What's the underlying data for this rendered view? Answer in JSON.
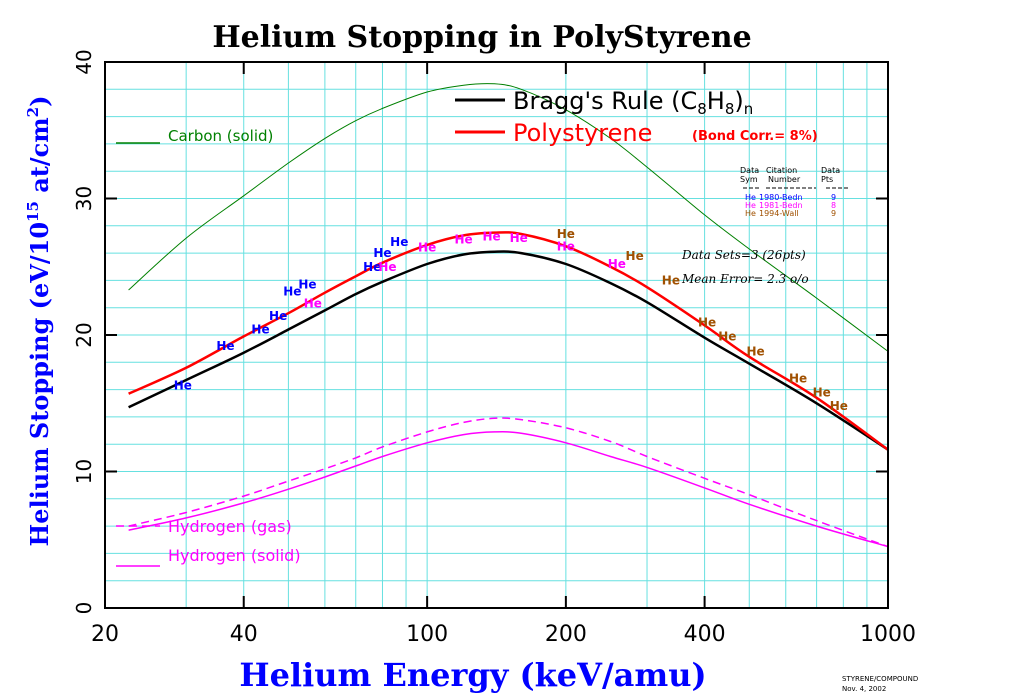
{
  "chart_data": {
    "type": "line",
    "title": "Helium Stopping in PolyStyrene",
    "xlabel": "Helium Energy (keV/amu)",
    "ylabel": {
      "prefix": "Helium Stopping (eV/10",
      "sup1": "15",
      "mid": " at/cm",
      "sup2": "2",
      "suffix": ")"
    },
    "x_scale": "log",
    "xlim": [
      20,
      1000
    ],
    "ylim": [
      0,
      40
    ],
    "x_ticks": [
      20,
      40,
      100,
      200,
      400,
      1000
    ],
    "x_tick_labels": [
      "20",
      "40",
      "100",
      "200",
      "400",
      "1000"
    ],
    "y_ticks": [
      0,
      10,
      20,
      30,
      40
    ],
    "y_tick_labels": [
      "0",
      "10",
      "20",
      "30",
      "40"
    ],
    "grid": true,
    "series": [
      {
        "name": "Carbon (solid)",
        "color": "#008000",
        "style": "solid",
        "x": [
          22.5,
          30,
          40,
          50,
          60,
          70,
          80,
          100,
          120,
          140,
          160,
          200,
          250,
          300,
          400,
          500,
          700,
          1000
        ],
        "y": [
          23.3,
          27.1,
          30.2,
          32.6,
          34.4,
          35.7,
          36.6,
          37.8,
          38.3,
          38.4,
          38.0,
          36.5,
          34.4,
          32.3,
          28.8,
          26.3,
          22.7,
          18.8
        ]
      },
      {
        "name": "Bragg's Rule (C8H8)n",
        "label_parts": [
          "Bragg's Rule (C",
          "8",
          "H",
          "8",
          ")",
          "n"
        ],
        "color": "#000000",
        "style": "solid",
        "x": [
          22.5,
          30,
          40,
          50,
          60,
          70,
          80,
          100,
          120,
          140,
          160,
          200,
          250,
          300,
          400,
          500,
          700,
          1000
        ],
        "y": [
          14.7,
          16.7,
          18.7,
          20.4,
          21.8,
          23.0,
          23.9,
          25.2,
          25.9,
          26.1,
          26.0,
          25.2,
          23.8,
          22.4,
          19.8,
          17.9,
          15.0,
          11.6
        ]
      },
      {
        "name": "Polystyrene",
        "color": "#ff0000",
        "style": "solid",
        "x": [
          22.5,
          30,
          40,
          50,
          60,
          70,
          80,
          100,
          120,
          140,
          160,
          200,
          250,
          300,
          400,
          500,
          700,
          1000
        ],
        "y": [
          15.7,
          17.6,
          19.9,
          21.6,
          23.1,
          24.3,
          25.3,
          26.6,
          27.3,
          27.5,
          27.4,
          26.5,
          25.0,
          23.5,
          20.7,
          18.4,
          15.4,
          11.6
        ]
      },
      {
        "name": "Hydrogen (gas)",
        "color": "#ff00ff",
        "style": "dashed",
        "x": [
          22.5,
          30,
          40,
          50,
          60,
          70,
          80,
          100,
          120,
          140,
          160,
          200,
          250,
          300,
          400,
          500,
          700,
          1000
        ],
        "y": [
          6.0,
          7.0,
          8.2,
          9.3,
          10.2,
          11.0,
          11.8,
          12.9,
          13.6,
          13.9,
          13.8,
          13.2,
          12.2,
          11.1,
          9.5,
          8.3,
          6.4,
          4.5
        ]
      },
      {
        "name": "Hydrogen (solid)",
        "color": "#ff00ff",
        "style": "solid",
        "x": [
          22.5,
          30,
          40,
          50,
          60,
          70,
          80,
          100,
          120,
          140,
          160,
          200,
          250,
          300,
          400,
          500,
          700,
          1000
        ],
        "y": [
          5.7,
          6.6,
          7.7,
          8.7,
          9.6,
          10.4,
          11.1,
          12.1,
          12.7,
          12.9,
          12.8,
          12.1,
          11.1,
          10.3,
          8.8,
          7.6,
          6.0,
          4.5
        ]
      }
    ],
    "data_points": [
      {
        "x": 29.5,
        "y": 16.3,
        "set": 0
      },
      {
        "x": 36.5,
        "y": 19.2,
        "set": 0
      },
      {
        "x": 43.5,
        "y": 20.4,
        "set": 0
      },
      {
        "x": 47.5,
        "y": 21.4,
        "set": 0
      },
      {
        "x": 51,
        "y": 23.2,
        "set": 0
      },
      {
        "x": 55,
        "y": 23.7,
        "set": 0
      },
      {
        "x": 76,
        "y": 25.0,
        "set": 0
      },
      {
        "x": 80,
        "y": 26.0,
        "set": 0
      },
      {
        "x": 87,
        "y": 26.8,
        "set": 0
      },
      {
        "x": 56.5,
        "y": 22.3,
        "set": 1
      },
      {
        "x": 82,
        "y": 25.0,
        "set": 1
      },
      {
        "x": 100,
        "y": 26.4,
        "set": 1
      },
      {
        "x": 120,
        "y": 27.0,
        "set": 1
      },
      {
        "x": 138,
        "y": 27.2,
        "set": 1
      },
      {
        "x": 158,
        "y": 27.1,
        "set": 1
      },
      {
        "x": 200,
        "y": 26.5,
        "set": 1
      },
      {
        "x": 258,
        "y": 25.2,
        "set": 1
      },
      {
        "x": 200,
        "y": 27.4,
        "set": 2
      },
      {
        "x": 282,
        "y": 25.8,
        "set": 2
      },
      {
        "x": 338,
        "y": 24.0,
        "set": 2
      },
      {
        "x": 405,
        "y": 20.9,
        "set": 2
      },
      {
        "x": 448,
        "y": 19.9,
        "set": 2
      },
      {
        "x": 516,
        "y": 18.8,
        "set": 2
      },
      {
        "x": 638,
        "y": 16.8,
        "set": 2
      },
      {
        "x": 718,
        "y": 15.8,
        "set": 2
      },
      {
        "x": 782,
        "y": 14.8,
        "set": 2
      }
    ],
    "data_sets": [
      {
        "sym": "He",
        "citation": "1980-Bedn",
        "pts": "9",
        "color": "#0000ff"
      },
      {
        "sym": "He",
        "citation": "1981-Bedn",
        "pts": "8",
        "color": "#ff00ff"
      },
      {
        "sym": "He",
        "citation": "1994-Wall",
        "pts": "9",
        "color": "#a05000"
      }
    ],
    "point_symbol": "He",
    "table_headers": {
      "col1_line1": "Data",
      "col1_line2": "Sym",
      "col2_line1": "Citation",
      "col2_line2": "Number",
      "col3_line1": "Data",
      "col3_line2": "Pts"
    },
    "legend_extra": "(Bond Corr.= 8%)",
    "stats": {
      "data_sets": "Data Sets=3 (26pts)",
      "mean_error": "Mean Error=  2.3 o/o"
    },
    "footer": {
      "line1": "STYRENE/COMPOUND",
      "line2": "Nov. 4, 2002"
    },
    "colors": {
      "grid": "#66e0e0",
      "axis": "#000000",
      "title": "#000000",
      "axis_label": "#0000ff"
    }
  }
}
